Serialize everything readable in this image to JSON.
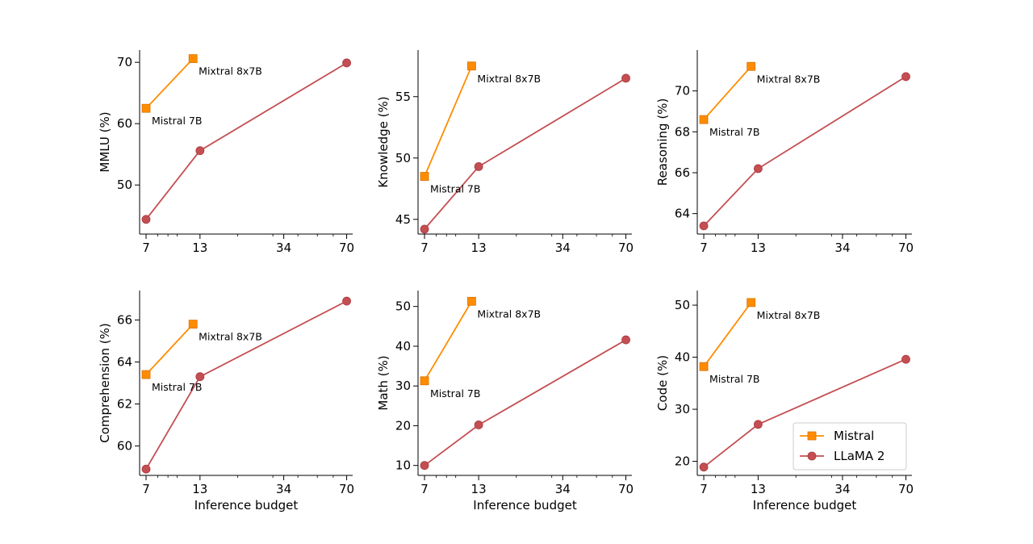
{
  "chart_data": [
    {
      "type": "line",
      "ylabel": "MMLU (%)",
      "xlabel": "",
      "x_ticks": [
        7,
        13,
        34,
        70
      ],
      "xlim": [
        6.5,
        75
      ],
      "ylim": [
        42,
        72
      ],
      "y_ticks": [
        50,
        60,
        70
      ],
      "series": [
        {
          "name": "Mistral",
          "x": [
            7,
            12
          ],
          "values": [
            62.5,
            70.6
          ]
        },
        {
          "name": "LLaMA 2",
          "x": [
            7,
            13,
            70
          ],
          "values": [
            44.4,
            55.6,
            69.9
          ]
        }
      ],
      "annotations": [
        {
          "text": "Mistral 7B",
          "x": 7,
          "y": 62.5,
          "anchor": "below"
        },
        {
          "text": "Mixtral 8x7B",
          "x": 12,
          "y": 70.6,
          "anchor": "below"
        }
      ]
    },
    {
      "type": "line",
      "ylabel": "Knowledge (%)",
      "xlabel": "",
      "x_ticks": [
        7,
        13,
        34,
        70
      ],
      "xlim": [
        6.5,
        75
      ],
      "ylim": [
        43.8,
        58.8
      ],
      "y_ticks": [
        45,
        50,
        55
      ],
      "series": [
        {
          "name": "Mistral",
          "x": [
            7,
            12
          ],
          "values": [
            48.5,
            57.5
          ]
        },
        {
          "name": "LLaMA 2",
          "x": [
            7,
            13,
            70
          ],
          "values": [
            44.2,
            49.3,
            56.5
          ]
        }
      ],
      "annotations": [
        {
          "text": "Mistral 7B",
          "x": 7,
          "y": 48.5,
          "anchor": "below"
        },
        {
          "text": "Mixtral 8x7B",
          "x": 12,
          "y": 57.5,
          "anchor": "below"
        }
      ]
    },
    {
      "type": "line",
      "ylabel": "Reasoning (%)",
      "xlabel": "",
      "x_ticks": [
        7,
        13,
        34,
        70
      ],
      "xlim": [
        6.5,
        75
      ],
      "ylim": [
        63,
        72
      ],
      "y_ticks": [
        64,
        66,
        68,
        70
      ],
      "series": [
        {
          "name": "Mistral",
          "x": [
            7,
            12
          ],
          "values": [
            68.6,
            71.2
          ]
        },
        {
          "name": "LLaMA 2",
          "x": [
            7,
            13,
            70
          ],
          "values": [
            63.4,
            66.2,
            70.7
          ]
        }
      ],
      "annotations": [
        {
          "text": "Mistral 7B",
          "x": 7,
          "y": 68.6,
          "anchor": "below"
        },
        {
          "text": "Mixtral 8x7B",
          "x": 12,
          "y": 71.2,
          "anchor": "below"
        }
      ]
    },
    {
      "type": "line",
      "ylabel": "Comprehension (%)",
      "xlabel": "Inference budget",
      "x_ticks": [
        7,
        13,
        34,
        70
      ],
      "xlim": [
        6.5,
        75
      ],
      "ylim": [
        58.6,
        67.4
      ],
      "y_ticks": [
        60,
        62,
        64,
        66
      ],
      "series": [
        {
          "name": "Mistral",
          "x": [
            7,
            12
          ],
          "values": [
            63.4,
            65.8
          ]
        },
        {
          "name": "LLaMA 2",
          "x": [
            7,
            13,
            70
          ],
          "values": [
            58.9,
            63.3,
            66.9
          ]
        }
      ],
      "annotations": [
        {
          "text": "Mistral 7B",
          "x": 7,
          "y": 63.4,
          "anchor": "below"
        },
        {
          "text": "Mixtral 8x7B",
          "x": 12,
          "y": 65.8,
          "anchor": "below"
        }
      ]
    },
    {
      "type": "line",
      "ylabel": "Math (%)",
      "xlabel": "Inference budget",
      "x_ticks": [
        7,
        13,
        34,
        70
      ],
      "xlim": [
        6.5,
        75
      ],
      "ylim": [
        7.5,
        54
      ],
      "y_ticks": [
        10,
        20,
        30,
        40,
        50
      ],
      "series": [
        {
          "name": "Mistral",
          "x": [
            7,
            12
          ],
          "values": [
            31.3,
            51.3
          ]
        },
        {
          "name": "LLaMA 2",
          "x": [
            7,
            13,
            70
          ],
          "values": [
            10.0,
            20.2,
            41.6
          ]
        }
      ],
      "annotations": [
        {
          "text": "Mistral 7B",
          "x": 7,
          "y": 31.3,
          "anchor": "below"
        },
        {
          "text": "Mixtral 8x7B",
          "x": 12,
          "y": 51.3,
          "anchor": "below"
        }
      ]
    },
    {
      "type": "line",
      "ylabel": "Code (%)",
      "xlabel": "Inference budget",
      "x_ticks": [
        7,
        13,
        34,
        70
      ],
      "xlim": [
        6.5,
        75
      ],
      "ylim": [
        17.3,
        52.8
      ],
      "y_ticks": [
        20,
        30,
        40,
        50
      ],
      "series": [
        {
          "name": "Mistral",
          "x": [
            7,
            12
          ],
          "values": [
            38.2,
            50.5
          ]
        },
        {
          "name": "LLaMA 2",
          "x": [
            7,
            13,
            70
          ],
          "values": [
            18.9,
            27.1,
            39.6
          ]
        }
      ],
      "annotations": [
        {
          "text": "Mistral 7B",
          "x": 7,
          "y": 38.2,
          "anchor": "below"
        },
        {
          "text": "Mixtral 8x7B",
          "x": 12,
          "y": 50.5,
          "anchor": "below"
        }
      ],
      "legend": {
        "position": "lower-right",
        "entries": [
          {
            "name": "Mistral",
            "marker": "square"
          },
          {
            "name": "LLaMA 2",
            "marker": "circle"
          }
        ]
      }
    }
  ],
  "colors": {
    "Mistral": "#ff8c00",
    "LLaMA 2": "#c44e52",
    "Mistral_edge": "#d97400",
    "LLaMA 2_edge": "#a83a3f"
  }
}
